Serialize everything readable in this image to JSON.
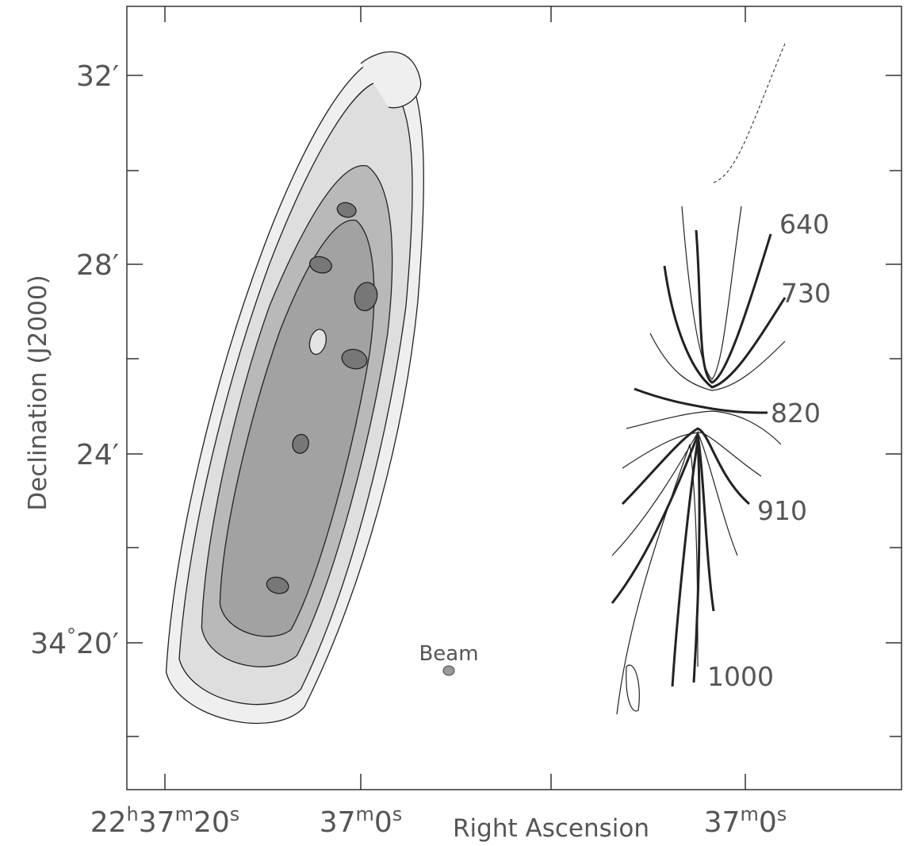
{
  "figure": {
    "x_axis": {
      "label": "Right Ascension",
      "ticks": [
        "22h37m20s",
        "37m0s",
        "37m0s"
      ]
    },
    "y_axis": {
      "label": "Declination (J2000)",
      "ticks": [
        "32′",
        "28′",
        "24′",
        "34°20′"
      ]
    },
    "beam_label": "Beam",
    "contour_labels": [
      "640",
      "730",
      "820",
      "910",
      "1000"
    ]
  }
}
